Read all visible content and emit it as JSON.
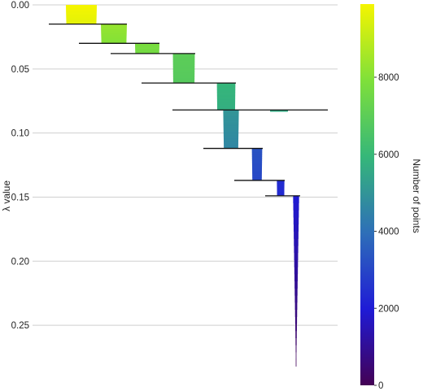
{
  "chart_data": {
    "type": "condensed-tree",
    "title": "",
    "ylabel": "λ value",
    "colorbar_label": "Number of points",
    "ylim": [
      0,
      0.295
    ],
    "y_inverted": true,
    "yticks": [
      0.0,
      0.05,
      0.1,
      0.15,
      0.2,
      0.25
    ],
    "ytick_labels": [
      "0.00",
      "0.05",
      "0.10",
      "0.15",
      "0.20",
      "0.25"
    ],
    "grid": true,
    "colorbar_range": [
      0,
      9900
    ],
    "colorbar_ticks": [
      0,
      2000,
      4000,
      6000,
      8000
    ],
    "colorbar_tick_labels": [
      "0",
      "2000",
      "4000",
      "6000",
      "8000"
    ],
    "colormap": [
      "#440154",
      "#1f1bd6",
      "#2e6fb8",
      "#35b779",
      "#7fe03a",
      "#f5f500"
    ],
    "points_total": 9900,
    "clusters": [
      {
        "x": 100,
        "lambda_start": 0.0,
        "lambda_end": 0.015,
        "size_start": 9900,
        "size_end": 9600
      },
      {
        "x": 140,
        "lambda_start": 0.015,
        "lambda_end": 0.03,
        "size_start": 8300,
        "size_end": 8000
      },
      {
        "x": 181,
        "lambda_start": 0.03,
        "lambda_end": 0.038,
        "size_start": 7800,
        "size_end": 7600
      },
      {
        "x": 226,
        "lambda_start": 0.038,
        "lambda_end": 0.061,
        "size_start": 7000,
        "size_end": 6800
      },
      {
        "x": 278,
        "lambda_start": 0.061,
        "lambda_end": 0.082,
        "size_start": 5900,
        "size_end": 5700
      },
      {
        "x": 284,
        "lambda_start": 0.082,
        "lambda_end": 0.112,
        "size_start": 5000,
        "size_end": 4600
      },
      {
        "x": 316,
        "lambda_start": 0.112,
        "lambda_end": 0.137,
        "size_start": 3300,
        "size_end": 3000
      },
      {
        "x": 345,
        "lambda_start": 0.137,
        "lambda_end": 0.149,
        "size_start": 2400,
        "size_end": 2300
      },
      {
        "x": 364,
        "lambda_start": 0.149,
        "lambda_end": 0.282,
        "size_start": 1900,
        "size_end": 30
      },
      {
        "x": 343,
        "lambda_start": 0.082,
        "lambda_end": 0.083,
        "size_start": 5700,
        "size_end": 5600
      }
    ],
    "splits": [
      {
        "lambda": 0.015,
        "x_left": 60,
        "x_right": 156
      },
      {
        "lambda": 0.03,
        "x_left": 97,
        "x_right": 196
      },
      {
        "lambda": 0.038,
        "x_left": 136,
        "x_right": 240
      },
      {
        "lambda": 0.061,
        "x_left": 174,
        "x_right": 290
      },
      {
        "lambda": 0.082,
        "x_left": 212,
        "x_right": 403
      },
      {
        "lambda": 0.112,
        "x_left": 250,
        "x_right": 323
      },
      {
        "lambda": 0.137,
        "x_left": 288,
        "x_right": 350
      },
      {
        "lambda": 0.149,
        "x_left": 326,
        "x_right": 369
      }
    ]
  }
}
